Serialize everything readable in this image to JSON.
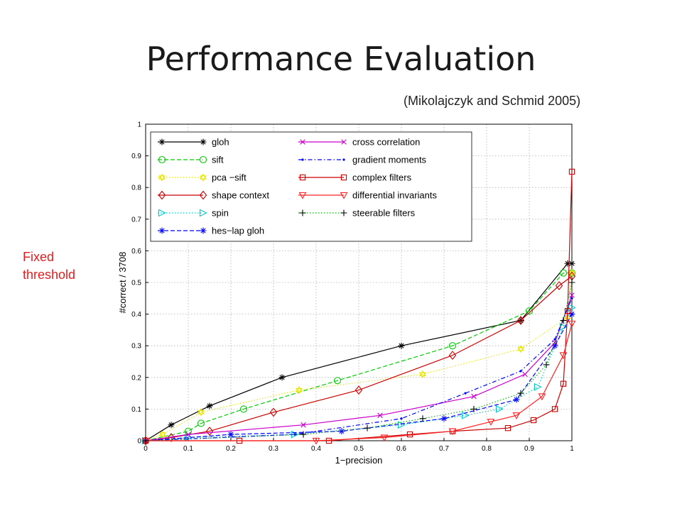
{
  "slide": {
    "title": "Performance Evaluation",
    "citation": "(Mikolajczyk and Schmid 2005)",
    "side_note": "Fixed\nthreshold"
  },
  "chart_data": {
    "type": "line",
    "xlabel": "1−precision",
    "ylabel": "#correct / 3708",
    "xlim": [
      0,
      1
    ],
    "ylim": [
      0,
      1
    ],
    "xticks": [
      "0",
      "0.1",
      "0.2",
      "0.3",
      "0.4",
      "0.5",
      "0.6",
      "0.7",
      "0.8",
      "0.9",
      "1"
    ],
    "yticks": [
      "0",
      "0.1",
      "0.2",
      "0.3",
      "0.4",
      "0.5",
      "0.6",
      "0.7",
      "0.8",
      "0.9",
      "1"
    ],
    "grid": true,
    "legend_position": "top-left",
    "series": [
      {
        "name": "gloh",
        "color": "#000000",
        "marker": "asterisk",
        "dash": "solid",
        "x": [
          0.0,
          0.06,
          0.15,
          0.32,
          0.6,
          0.88,
          0.99,
          1.0
        ],
        "y": [
          0.0,
          0.05,
          0.11,
          0.2,
          0.3,
          0.38,
          0.56,
          0.56
        ]
      },
      {
        "name": "sift",
        "color": "#00cc00",
        "marker": "circle",
        "dash": "dashed",
        "x": [
          0.0,
          0.1,
          0.13,
          0.23,
          0.45,
          0.72,
          0.9,
          0.98,
          1.0
        ],
        "y": [
          0.0,
          0.03,
          0.055,
          0.1,
          0.19,
          0.3,
          0.41,
          0.53,
          0.53
        ]
      },
      {
        "name": "pca −sift",
        "color": "#e6e600",
        "marker": "star",
        "dash": "dotted",
        "x": [
          0.0,
          0.04,
          0.13,
          0.36,
          0.65,
          0.88,
          0.99,
          1.0
        ],
        "y": [
          0.0,
          0.02,
          0.09,
          0.16,
          0.21,
          0.29,
          0.39,
          0.53
        ]
      },
      {
        "name": "shape context",
        "color": "#cc0000",
        "marker": "diamond",
        "dash": "solid",
        "x": [
          0.0,
          0.06,
          0.15,
          0.3,
          0.5,
          0.72,
          0.88,
          0.97,
          1.0
        ],
        "y": [
          0.0,
          0.01,
          0.03,
          0.09,
          0.16,
          0.27,
          0.38,
          0.49,
          0.52
        ]
      },
      {
        "name": "spin",
        "color": "#00cccc",
        "marker": "triangle-right",
        "dash": "dotted",
        "x": [
          0.0,
          0.1,
          0.35,
          0.6,
          0.75,
          0.83,
          0.92,
          0.98,
          1.0
        ],
        "y": [
          0.0,
          0.01,
          0.02,
          0.05,
          0.08,
          0.1,
          0.17,
          0.36,
          0.42
        ]
      },
      {
        "name": "hes−lap gloh",
        "color": "#0000ff",
        "marker": "asterisk",
        "dash": "dashed",
        "x": [
          0.0,
          0.2,
          0.46,
          0.7,
          0.87,
          0.96,
          1.0
        ],
        "y": [
          0.0,
          0.02,
          0.03,
          0.07,
          0.13,
          0.3,
          0.4
        ]
      },
      {
        "name": "cross correlation",
        "color": "#cc00cc",
        "marker": "cross",
        "dash": "solid",
        "x": [
          0.0,
          0.1,
          0.37,
          0.55,
          0.77,
          0.89,
          0.96,
          1.0
        ],
        "y": [
          0.0,
          0.02,
          0.05,
          0.08,
          0.14,
          0.21,
          0.31,
          0.46
        ]
      },
      {
        "name": "gradient moments",
        "color": "#0000ff",
        "marker": "dot",
        "dash": "dashdot",
        "x": [
          0.0,
          0.35,
          0.6,
          0.75,
          0.88,
          0.96,
          1.0
        ],
        "y": [
          0.0,
          0.02,
          0.07,
          0.15,
          0.22,
          0.32,
          0.45
        ]
      },
      {
        "name": "complex filters",
        "color": "#cc0000",
        "marker": "square",
        "dash": "solid",
        "x": [
          0.0,
          0.22,
          0.43,
          0.62,
          0.72,
          0.85,
          0.91,
          0.96,
          0.98,
          0.99,
          1.0
        ],
        "y": [
          0.0,
          0.0,
          0.0,
          0.02,
          0.03,
          0.04,
          0.065,
          0.1,
          0.18,
          0.41,
          0.85
        ]
      },
      {
        "name": "differential invariants",
        "color": "#ff2222",
        "marker": "triangle-down",
        "dash": "solid",
        "x": [
          0.0,
          0.4,
          0.56,
          0.72,
          0.81,
          0.87,
          0.93,
          0.98,
          1.0
        ],
        "y": [
          0.0,
          0.0,
          0.01,
          0.03,
          0.06,
          0.08,
          0.14,
          0.27,
          0.37
        ]
      },
      {
        "name": "steerable filters",
        "color": "#000000",
        "marker": "plus",
        "dash": "dotted-green",
        "x": [
          0.0,
          0.37,
          0.52,
          0.65,
          0.77,
          0.88,
          0.94,
          0.98,
          1.0
        ],
        "y": [
          0.0,
          0.02,
          0.04,
          0.07,
          0.1,
          0.15,
          0.24,
          0.38,
          0.5
        ]
      }
    ]
  }
}
